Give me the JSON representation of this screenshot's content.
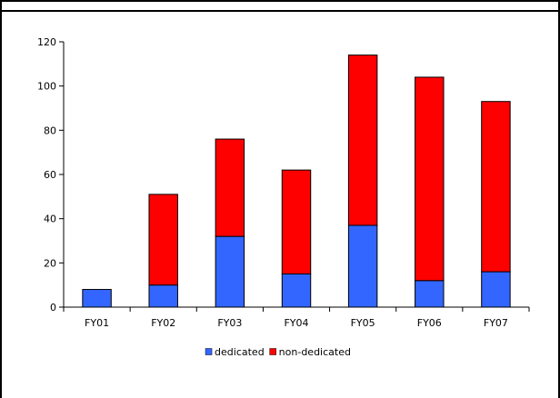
{
  "chart_data": {
    "type": "bar",
    "stacked": true,
    "categories": [
      "FY01",
      "FY02",
      "FY03",
      "FY04",
      "FY05",
      "FY06",
      "FY07"
    ],
    "series": [
      {
        "name": "dedicated",
        "color": "#3366ff",
        "values": [
          8,
          10,
          32,
          15,
          37,
          12,
          16
        ]
      },
      {
        "name": "non-dedicated",
        "color": "#ff0000",
        "values": [
          0,
          41,
          44,
          47,
          77,
          92,
          77
        ]
      }
    ],
    "ylim": [
      0,
      120
    ],
    "yticks": [
      0,
      20,
      40,
      60,
      80,
      100,
      120
    ],
    "title": "",
    "xlabel": "",
    "ylabel": "",
    "grid": false,
    "legend_position": "bottom"
  }
}
